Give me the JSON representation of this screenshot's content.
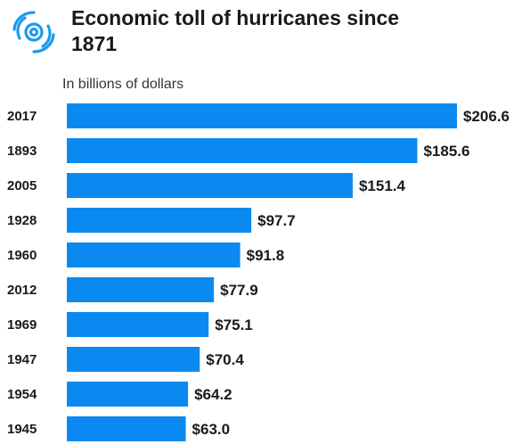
{
  "colors": {
    "bar": "#0a8af0",
    "logo": "#1b9af0",
    "text": "#1a1a1a"
  },
  "icons": {
    "logo": "hurricane-icon"
  },
  "chart_data": {
    "type": "bar",
    "orientation": "horizontal",
    "title": "Economic toll of hurricanes since 1871",
    "subtitle": "In billions of dollars",
    "categories": [
      "2017",
      "1893",
      "2005",
      "1928",
      "1960",
      "2012",
      "1969",
      "1947",
      "1954",
      "1945"
    ],
    "values": [
      206.6,
      185.6,
      151.4,
      97.7,
      91.8,
      77.9,
      75.1,
      70.4,
      64.2,
      63.0
    ],
    "value_labels": [
      "$206.6",
      "$185.6",
      "$151.4",
      "$97.7",
      "$91.8",
      "$77.9",
      "$75.1",
      "$70.4",
      "$64.2",
      "$63.0"
    ],
    "xlim": [
      0,
      206.6
    ],
    "grid": false,
    "legend": "none"
  }
}
